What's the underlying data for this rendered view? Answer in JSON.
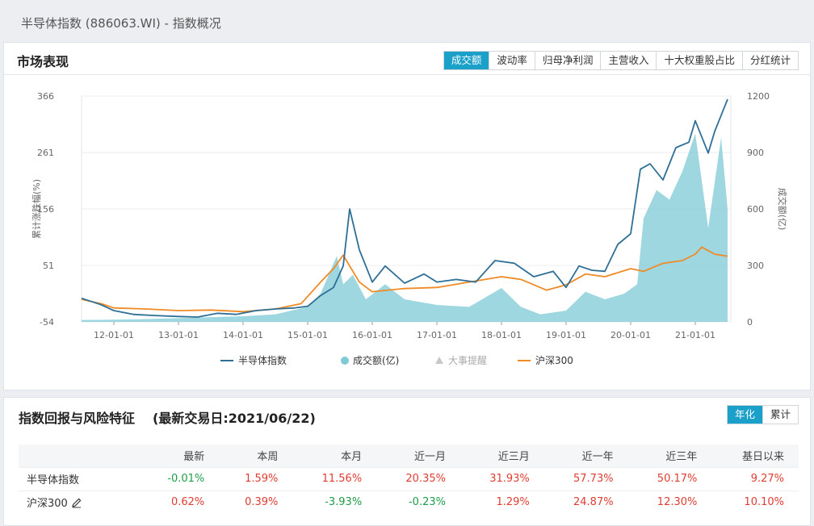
{
  "page": {
    "title": "半导体指数 (886063.WI) - 指数概况"
  },
  "market": {
    "title": "市场表现",
    "tabs": [
      "成交额",
      "波动率",
      "归母净利润",
      "主营收入",
      "十大权重股占比",
      "分红统计"
    ],
    "active_tab": 0
  },
  "chart_data": {
    "type": "line",
    "x_ticks": [
      "12-01-01",
      "13-01-01",
      "14-01-01",
      "15-01-01",
      "16-01-01",
      "17-01-01",
      "18-01-01",
      "19-01-01",
      "20-01-01",
      "21-01-01"
    ],
    "y_left": {
      "label": "累计涨跌幅(%)",
      "ticks": [
        -54,
        51,
        156,
        261,
        366
      ],
      "range": [
        -54,
        366
      ]
    },
    "y_right": {
      "label": "成交额(亿)",
      "ticks": [
        0,
        300,
        600,
        900,
        1200
      ],
      "range": [
        0,
        1200
      ]
    },
    "legend": [
      "半导体指数",
      "成交额(亿)",
      "大事提醒",
      "沪深300"
    ],
    "colors": {
      "index": "#2e6f96",
      "volume": "#7fcad6",
      "hs300": "#f08a24"
    },
    "series": [
      {
        "name": "半导体指数",
        "axis": "left",
        "x": [
          2011.5,
          2011.8,
          2012.0,
          2012.3,
          2012.6,
          2013.0,
          2013.3,
          2013.6,
          2013.9,
          2014.2,
          2014.5,
          2014.8,
          2015.0,
          2015.2,
          2015.4,
          2015.55,
          2015.65,
          2015.8,
          2016.0,
          2016.2,
          2016.5,
          2016.8,
          2017.0,
          2017.3,
          2017.6,
          2017.9,
          2018.2,
          2018.5,
          2018.8,
          2019.0,
          2019.2,
          2019.4,
          2019.6,
          2019.8,
          2020.0,
          2020.15,
          2020.3,
          2020.5,
          2020.7,
          2020.9,
          2021.0,
          2021.2,
          2021.3,
          2021.5
        ],
        "y": [
          -10,
          -22,
          -33,
          -40,
          -42,
          -44,
          -45,
          -38,
          -40,
          -33,
          -30,
          -28,
          -25,
          -5,
          10,
          50,
          156,
          80,
          20,
          50,
          18,
          35,
          20,
          25,
          20,
          60,
          55,
          30,
          40,
          10,
          50,
          42,
          40,
          90,
          110,
          230,
          240,
          210,
          270,
          280,
          320,
          260,
          300,
          360
        ]
      },
      {
        "name": "沪深300",
        "axis": "left",
        "x": [
          2011.5,
          2011.8,
          2012.0,
          2012.5,
          2013.0,
          2013.5,
          2014.0,
          2014.5,
          2014.9,
          2015.2,
          2015.4,
          2015.55,
          2015.8,
          2016.0,
          2016.5,
          2017.0,
          2017.5,
          2018.0,
          2018.3,
          2018.7,
          2019.0,
          2019.3,
          2019.6,
          2020.0,
          2020.2,
          2020.5,
          2020.8,
          2021.0,
          2021.1,
          2021.3,
          2021.5
        ],
        "y": [
          -12,
          -20,
          -28,
          -30,
          -33,
          -32,
          -35,
          -30,
          -20,
          20,
          45,
          70,
          20,
          2,
          8,
          10,
          20,
          30,
          25,
          5,
          15,
          35,
          30,
          45,
          40,
          55,
          60,
          72,
          85,
          72,
          68
        ]
      },
      {
        "name": "成交额(亿)",
        "axis": "right",
        "type": "area",
        "x": [
          2011.5,
          2012.0,
          2012.5,
          2013.0,
          2013.5,
          2014.0,
          2014.5,
          2015.0,
          2015.2,
          2015.45,
          2015.55,
          2015.7,
          2015.9,
          2016.2,
          2016.5,
          2017.0,
          2017.5,
          2018.0,
          2018.3,
          2018.6,
          2019.0,
          2019.3,
          2019.6,
          2019.9,
          2020.1,
          2020.2,
          2020.4,
          2020.6,
          2020.8,
          2021.0,
          2021.2,
          2021.4,
          2021.5
        ],
        "y": [
          10,
          12,
          15,
          20,
          25,
          30,
          40,
          80,
          150,
          350,
          200,
          250,
          120,
          200,
          120,
          90,
          80,
          180,
          80,
          40,
          60,
          160,
          120,
          150,
          200,
          550,
          700,
          650,
          800,
          1000,
          500,
          980,
          600
        ]
      }
    ]
  },
  "risk": {
    "title": "指数回报与风险特征",
    "date": "(最新交易日:2021/06/22)",
    "tabs": [
      "年化",
      "累计"
    ],
    "active_tab": 0,
    "headers": [
      "",
      "最新",
      "本周",
      "本月",
      "近一月",
      "近三月",
      "近一年",
      "近三年",
      "基日以来"
    ],
    "rows": [
      {
        "name": "半导体指数",
        "values": [
          "-0.01%",
          "1.59%",
          "11.56%",
          "20.35%",
          "31.93%",
          "57.73%",
          "50.17%",
          "9.27%"
        ]
      },
      {
        "name": "沪深300",
        "values": [
          "0.62%",
          "0.39%",
          "-3.93%",
          "-0.23%",
          "1.29%",
          "24.87%",
          "12.30%",
          "10.10%"
        ]
      }
    ]
  }
}
